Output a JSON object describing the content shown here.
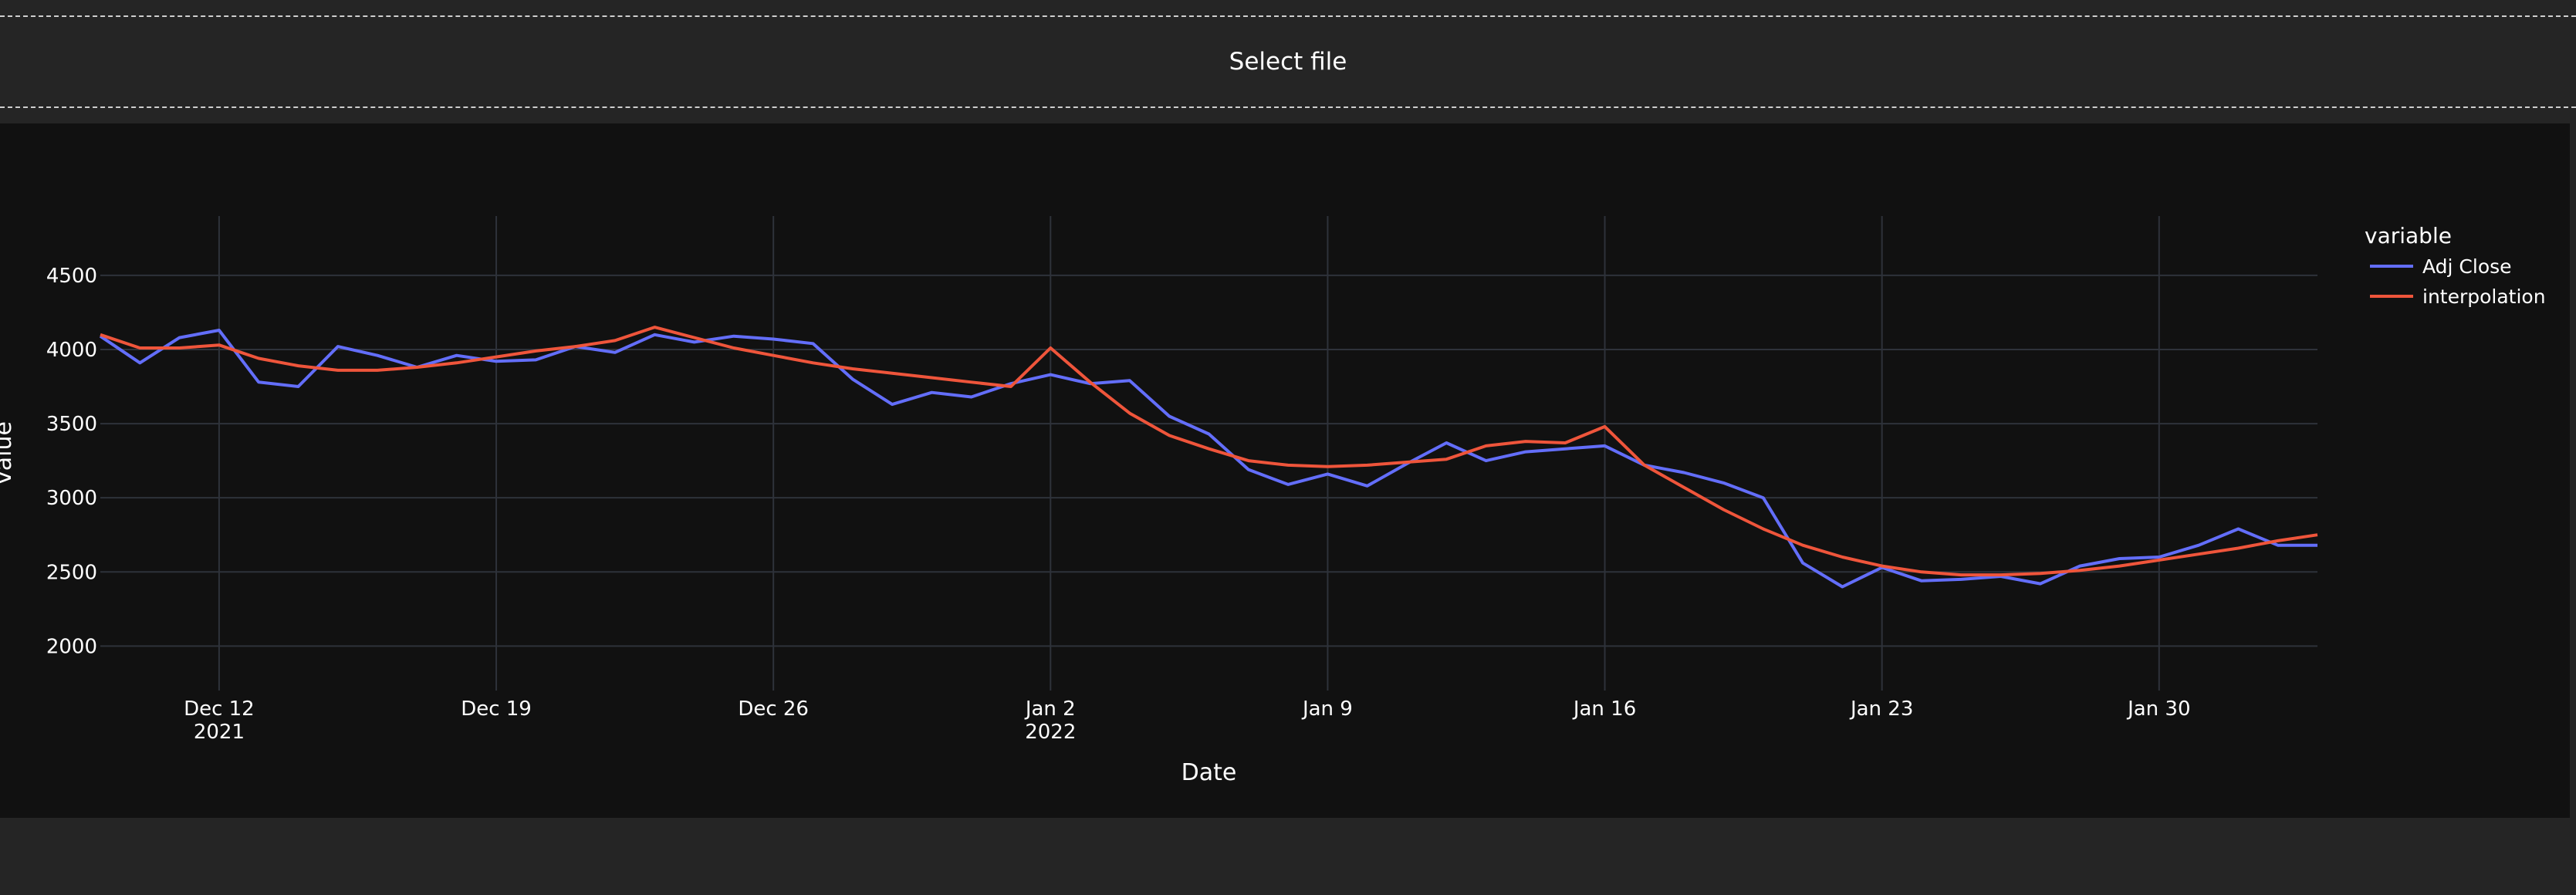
{
  "file_bar": {
    "label": "Select file"
  },
  "chart_data": {
    "type": "line",
    "title": "",
    "xlabel": "Date",
    "ylabel": "value",
    "ylim": [
      1700,
      4900
    ],
    "xlim": [
      "2021-12-09",
      "2022-02-03"
    ],
    "y_ticks": [
      2000,
      2500,
      3000,
      3500,
      4000,
      4500
    ],
    "x_ticks": [
      {
        "date": "2021-12-12",
        "label": "Dec 12",
        "sub": "2021"
      },
      {
        "date": "2021-12-19",
        "label": "Dec 19",
        "sub": ""
      },
      {
        "date": "2021-12-26",
        "label": "Dec 26",
        "sub": ""
      },
      {
        "date": "2022-01-02",
        "label": "Jan 2",
        "sub": "2022"
      },
      {
        "date": "2022-01-09",
        "label": "Jan 9",
        "sub": ""
      },
      {
        "date": "2022-01-16",
        "label": "Jan 16",
        "sub": ""
      },
      {
        "date": "2022-01-23",
        "label": "Jan 23",
        "sub": ""
      },
      {
        "date": "2022-01-30",
        "label": "Jan 30",
        "sub": ""
      }
    ],
    "grid": true,
    "legend": {
      "title": "variable",
      "position": "right"
    },
    "x": [
      "2021-12-09",
      "2021-12-10",
      "2021-12-11",
      "2021-12-12",
      "2021-12-13",
      "2021-12-14",
      "2021-12-15",
      "2021-12-16",
      "2021-12-17",
      "2021-12-18",
      "2021-12-19",
      "2021-12-20",
      "2021-12-21",
      "2021-12-22",
      "2021-12-23",
      "2021-12-24",
      "2021-12-25",
      "2021-12-26",
      "2021-12-27",
      "2021-12-28",
      "2021-12-29",
      "2021-12-30",
      "2021-12-31",
      "2022-01-01",
      "2022-01-02",
      "2022-01-03",
      "2022-01-04",
      "2022-01-05",
      "2022-01-06",
      "2022-01-07",
      "2022-01-08",
      "2022-01-09",
      "2022-01-10",
      "2022-01-11",
      "2022-01-12",
      "2022-01-13",
      "2022-01-14",
      "2022-01-15",
      "2022-01-16",
      "2022-01-17",
      "2022-01-18",
      "2022-01-19",
      "2022-01-20",
      "2022-01-21",
      "2022-01-22",
      "2022-01-23",
      "2022-01-24",
      "2022-01-25",
      "2022-01-26",
      "2022-01-27",
      "2022-01-28",
      "2022-01-29",
      "2022-01-30",
      "2022-01-31",
      "2022-02-01",
      "2022-02-02",
      "2022-02-03"
    ],
    "series": [
      {
        "name": "Adj Close",
        "color": "#636efa",
        "values": [
          4090,
          3910,
          4080,
          4130,
          3780,
          3750,
          4020,
          3960,
          3880,
          3960,
          3920,
          3930,
          4020,
          3980,
          4100,
          4050,
          4090,
          4070,
          4040,
          3800,
          3630,
          3710,
          3680,
          3770,
          3830,
          3770,
          3790,
          3550,
          3430,
          3190,
          3090,
          3160,
          3080,
          3230,
          3370,
          3250,
          3310,
          3330,
          3350,
          3220,
          3170,
          3100,
          3000,
          2560,
          2400,
          2530,
          2440,
          2450,
          2470,
          2420,
          2540,
          2590,
          2600,
          2680,
          2790,
          2680,
          2680
        ]
      },
      {
        "name": "interpolation",
        "color": "#ef553b",
        "values": [
          4100,
          4010,
          4010,
          4030,
          3940,
          3890,
          3860,
          3860,
          3880,
          3910,
          3950,
          3990,
          4020,
          4060,
          4150,
          4080,
          4010,
          3960,
          3910,
          3870,
          3840,
          3810,
          3780,
          3750,
          4010,
          3780,
          3570,
          3420,
          3330,
          3250,
          3220,
          3210,
          3220,
          3240,
          3260,
          3350,
          3380,
          3370,
          3480,
          3220,
          3070,
          2920,
          2790,
          2680,
          2600,
          2540,
          2500,
          2480,
          2480,
          2490,
          2510,
          2540,
          2580,
          2620,
          2660,
          2710,
          2750
        ]
      }
    ]
  }
}
